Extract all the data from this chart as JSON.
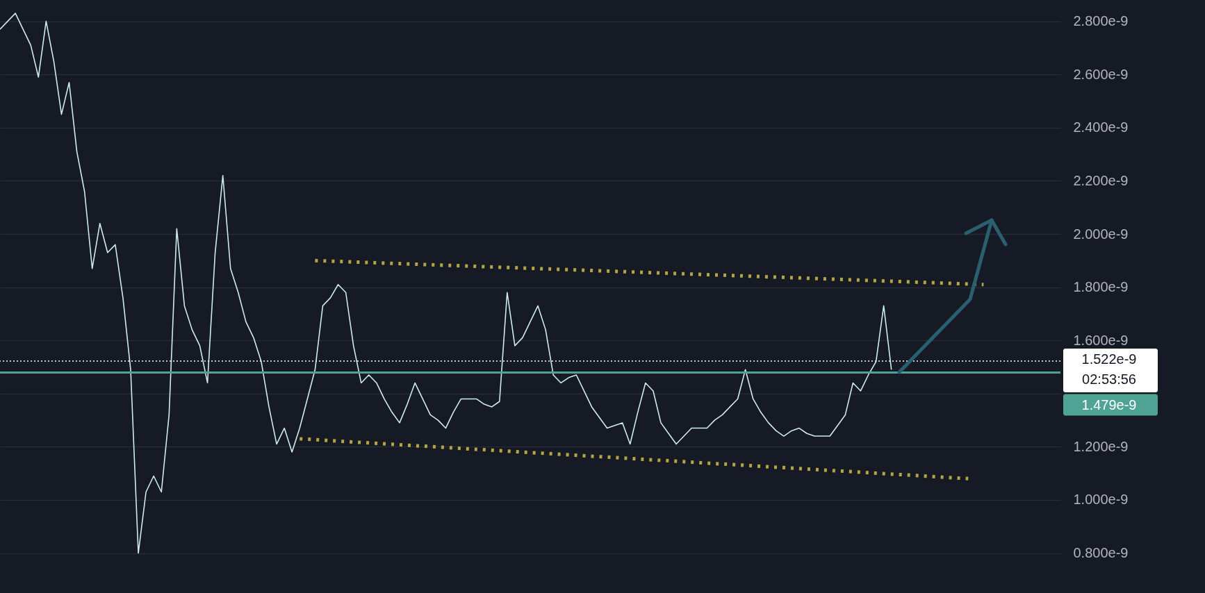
{
  "chart_data": {
    "type": "line",
    "ylim": [
      6.5e-10,
      2.88e-09
    ],
    "yticks": [
      {
        "value": 8e-10,
        "label": "0.800e-9"
      },
      {
        "value": 1e-09,
        "label": "1.000e-9"
      },
      {
        "value": 1.2e-09,
        "label": "1.200e-9"
      },
      {
        "value": 1.4e-09,
        "label": null
      },
      {
        "value": 1.6e-09,
        "label": "1.600e-9"
      },
      {
        "value": 1.8e-09,
        "label": "1.800e-9"
      },
      {
        "value": 2e-09,
        "label": "2.000e-9"
      },
      {
        "value": 2.2e-09,
        "label": "2.200e-9"
      },
      {
        "value": 2.4e-09,
        "label": "2.400e-9"
      },
      {
        "value": 2.6e-09,
        "label": "2.600e-9"
      },
      {
        "value": 2.8e-09,
        "label": "2.800e-9"
      }
    ],
    "categories": [
      null,
      null,
      null,
      null,
      null,
      null,
      null,
      null,
      null,
      null,
      null,
      null,
      null,
      null,
      null,
      null,
      null,
      null,
      null,
      null,
      null,
      null,
      null,
      null,
      null,
      null,
      null,
      null,
      null,
      null,
      null,
      null,
      null,
      null,
      null,
      null,
      null,
      null,
      null,
      null,
      null,
      null,
      null,
      null,
      null,
      null,
      null,
      null,
      null,
      null,
      null,
      null,
      null,
      null,
      null,
      null,
      null,
      null,
      null,
      null,
      null,
      null,
      null,
      null,
      null,
      null,
      null,
      null,
      null,
      null,
      null,
      null,
      null,
      null,
      null,
      null,
      null,
      null,
      null,
      null,
      null,
      null,
      null,
      null,
      null,
      null,
      null,
      null,
      null,
      null,
      null,
      null,
      null,
      null,
      null,
      null,
      null,
      null,
      null,
      null,
      null,
      null,
      null,
      null,
      null,
      null,
      null,
      null,
      null,
      null,
      null,
      null,
      null,
      null,
      null,
      null,
      null,
      null,
      null,
      null,
      null,
      null,
      null,
      null,
      null,
      null,
      null,
      null,
      null,
      null,
      null,
      null,
      null,
      null,
      null,
      null,
      null,
      null,
      null
    ],
    "tick_labels": "y",
    "grid": true,
    "series": [
      {
        "color": "#cdeee8",
        "values": [
          2.77e-09,
          2.8e-09,
          2.83e-09,
          2.77e-09,
          2.71e-09,
          2.59e-09,
          2.8e-09,
          2.65e-09,
          2.45e-09,
          2.57e-09,
          2.31e-09,
          2.16e-09,
          1.87e-09,
          2.04e-09,
          1.93e-09,
          1.96e-09,
          1.76e-09,
          1.49e-09,
          8e-10,
          1.03e-09,
          1.09e-09,
          1.03e-09,
          1.32e-09,
          2.02e-09,
          1.73e-09,
          1.64e-09,
          1.58e-09,
          1.44e-09,
          1.93e-09,
          2.22e-09,
          1.87e-09,
          1.78e-09,
          1.67e-09,
          1.61e-09,
          1.52e-09,
          1.35e-09,
          1.21e-09,
          1.27e-09,
          1.18e-09,
          1.27e-09,
          1.38e-09,
          1.49e-09,
          1.73e-09,
          1.76e-09,
          1.81e-09,
          1.78e-09,
          1.58e-09,
          1.44e-09,
          1.47e-09,
          1.44e-09,
          1.38e-09,
          1.33e-09,
          1.29e-09,
          1.36e-09,
          1.44e-09,
          1.38e-09,
          1.32e-09,
          1.3e-09,
          1.27e-09,
          1.33e-09,
          1.38e-09,
          1.38e-09,
          1.38e-09,
          1.36e-09,
          1.35e-09,
          1.37e-09,
          1.78e-09,
          1.58e-09,
          1.61e-09,
          1.67e-09,
          1.73e-09,
          1.64e-09,
          1.47e-09,
          1.44e-09,
          1.46e-09,
          1.47e-09,
          1.41e-09,
          1.35e-09,
          1.31e-09,
          1.27e-09,
          1.28e-09,
          1.29e-09,
          1.21e-09,
          1.33e-09,
          1.44e-09,
          1.41e-09,
          1.29e-09,
          1.25e-09,
          1.21e-09,
          1.24e-09,
          1.27e-09,
          1.27e-09,
          1.27e-09,
          1.3e-09,
          1.32e-09,
          1.35e-09,
          1.38e-09,
          1.49e-09,
          1.38e-09,
          1.33e-09,
          1.29e-09,
          1.26e-09,
          1.24e-09,
          1.26e-09,
          1.27e-09,
          1.25e-09,
          1.24e-09,
          1.24e-09,
          1.24e-09,
          1.28e-09,
          1.32e-09,
          1.44e-09,
          1.41e-09,
          1.47e-09,
          1.52e-09,
          1.73e-09,
          1.49e-09,
          null,
          null,
          null,
          null,
          null,
          null,
          null,
          null,
          null,
          null,
          null,
          null,
          null,
          null,
          null,
          null,
          null,
          null,
          null,
          null,
          null,
          null
        ]
      },
      {
        "color": "#b5a642",
        "line_style": "dotted",
        "values": [
          null,
          null,
          null,
          null,
          null,
          null,
          null,
          null,
          null,
          null,
          null,
          null,
          null,
          null,
          null,
          null,
          null,
          null,
          null,
          null,
          null,
          null,
          null,
          null,
          null,
          null,
          null,
          null,
          null,
          null,
          null,
          null,
          null,
          null,
          null,
          null,
          null,
          null,
          null,
          null,
          null,
          1.9e-09,
          null,
          null,
          null,
          null,
          null,
          null,
          null,
          null,
          null,
          null,
          null,
          null,
          null,
          null,
          null,
          null,
          null,
          null,
          null,
          null,
          null,
          null,
          null,
          null,
          null,
          null,
          null,
          null,
          null,
          null,
          null,
          null,
          null,
          null,
          null,
          null,
          null,
          null,
          null,
          null,
          null,
          null,
          null,
          null,
          null,
          null,
          null,
          null,
          null,
          null,
          null,
          null,
          null,
          null,
          null,
          null,
          null,
          null,
          null,
          null,
          null,
          null,
          null,
          null,
          null,
          null,
          null,
          null,
          null,
          null,
          null,
          null,
          null,
          null,
          null,
          null,
          null,
          null,
          null,
          null,
          null,
          null,
          null,
          null,
          null,
          null,
          1.81e-09,
          null,
          null,
          null,
          null,
          null,
          null,
          null,
          null,
          null,
          null
        ]
      },
      {
        "color": "#b5a642",
        "line_style": "dotted",
        "values": [
          null,
          null,
          null,
          null,
          null,
          null,
          null,
          null,
          null,
          null,
          null,
          null,
          null,
          null,
          null,
          null,
          null,
          null,
          null,
          null,
          null,
          null,
          null,
          null,
          null,
          null,
          null,
          null,
          null,
          null,
          null,
          null,
          null,
          null,
          null,
          null,
          null,
          null,
          null,
          1.23e-09,
          null,
          null,
          null,
          null,
          null,
          null,
          null,
          null,
          null,
          null,
          null,
          null,
          null,
          null,
          null,
          null,
          null,
          null,
          null,
          null,
          null,
          null,
          null,
          null,
          null,
          null,
          null,
          null,
          null,
          null,
          null,
          null,
          null,
          null,
          null,
          null,
          null,
          null,
          null,
          null,
          null,
          null,
          null,
          null,
          null,
          null,
          null,
          null,
          null,
          null,
          null,
          null,
          null,
          null,
          null,
          null,
          null,
          null,
          null,
          null,
          null,
          null,
          null,
          null,
          null,
          null,
          null,
          null,
          null,
          null,
          null,
          null,
          null,
          null,
          null,
          null,
          null,
          null,
          null,
          null,
          null,
          null,
          null,
          null,
          null,
          null,
          1.08e-09,
          null,
          null,
          null,
          null,
          null,
          null,
          null,
          null,
          null,
          null,
          null,
          null
        ]
      }
    ],
    "ref_lines": [
      {
        "axis": "y",
        "value": 1.522e-09,
        "label": "1.522e-9",
        "color": "#ffffff",
        "line_style": "dotted"
      },
      {
        "axis": "y",
        "value": 1.479e-09,
        "label": "1.479e-9",
        "color": "#4fa394",
        "line_style": "solid"
      }
    ],
    "annotations": [
      "02:53:56"
    ]
  }
}
